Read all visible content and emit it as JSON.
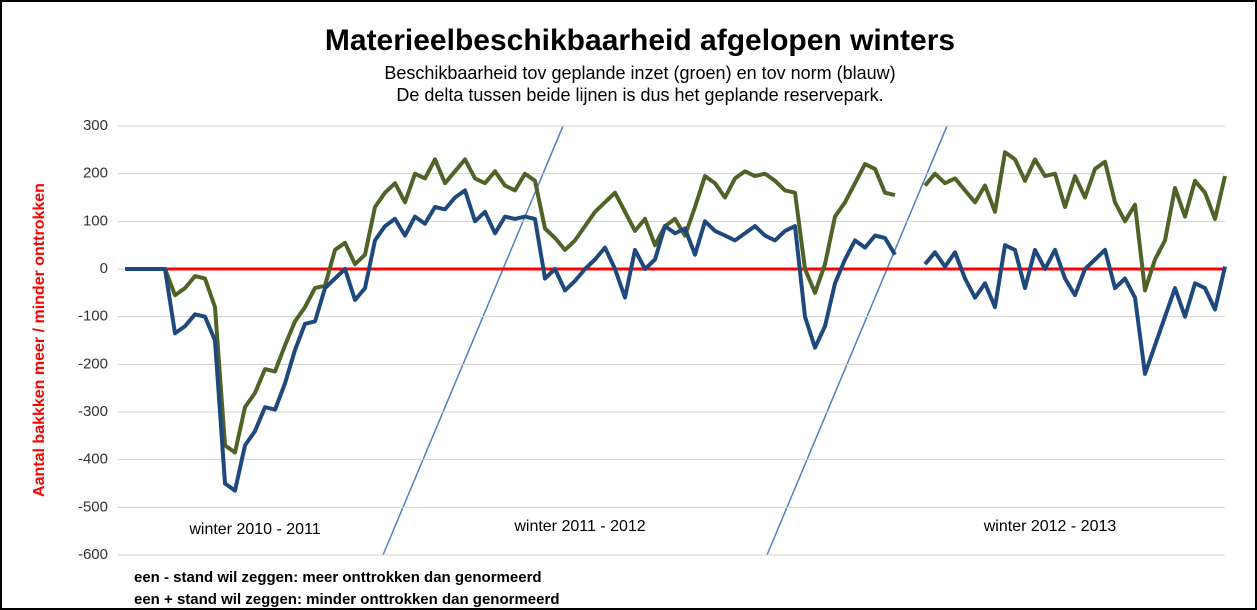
{
  "chart_data": {
    "type": "line",
    "title": "Materieelbeschikbaarheid afgelopen winters",
    "subtitle": [
      "Beschikbaarheid tov geplande inzet (groen) en tov norm (blauw)",
      "De delta tussen beide lijnen is dus het geplande reservepark."
    ],
    "y_label": "Aantal bakkken meer / minder onttrokken",
    "ylim": [
      -600,
      300
    ],
    "yticks": [
      -600,
      -500,
      -400,
      -300,
      -200,
      -100,
      0,
      100,
      200,
      300
    ],
    "grid": true,
    "reference_lines": [
      {
        "value": 0,
        "color": "#ff0000"
      }
    ],
    "series": [
      {
        "color": "#4f6228",
        "values": [
          0,
          0,
          0,
          0,
          0,
          -55,
          -40,
          -15,
          -20,
          -80,
          -370,
          -385,
          -290,
          -260,
          -210,
          -215,
          -160,
          -110,
          -80,
          -40,
          -35,
          40,
          55,
          10,
          30,
          130,
          160,
          180,
          140,
          200,
          190,
          230,
          180,
          205,
          230,
          190,
          180,
          205,
          175,
          165,
          200,
          185,
          85,
          65,
          40,
          60,
          90,
          120,
          140,
          160,
          120,
          80,
          105,
          50,
          90,
          105,
          70,
          130,
          195,
          180,
          150,
          190,
          205,
          195,
          200,
          185,
          165,
          160,
          0,
          -50,
          10,
          110,
          140,
          180,
          220,
          210,
          160,
          155,
          null,
          null,
          175,
          200,
          180,
          190,
          165,
          140,
          175,
          120,
          245,
          230,
          185,
          230,
          195,
          200,
          130,
          195,
          150,
          210,
          225,
          140,
          100,
          135,
          -45,
          20,
          60,
          170,
          110,
          185,
          160,
          105,
          195
        ]
      },
      {
        "color": "#1f497d",
        "values": [
          0,
          0,
          0,
          0,
          0,
          -135,
          -120,
          -95,
          -100,
          -150,
          -450,
          -465,
          -370,
          -340,
          -290,
          -295,
          -240,
          -170,
          -115,
          -110,
          -40,
          -20,
          0,
          -65,
          -40,
          60,
          90,
          105,
          70,
          110,
          95,
          130,
          125,
          150,
          165,
          100,
          120,
          75,
          110,
          105,
          110,
          105,
          -20,
          0,
          -45,
          -25,
          0,
          20,
          45,
          0,
          -60,
          40,
          0,
          20,
          90,
          75,
          85,
          30,
          100,
          80,
          70,
          60,
          75,
          90,
          70,
          60,
          80,
          90,
          -100,
          -165,
          -120,
          -30,
          20,
          60,
          45,
          70,
          65,
          30,
          null,
          null,
          10,
          35,
          5,
          35,
          -20,
          -60,
          -30,
          -80,
          50,
          40,
          -40,
          40,
          0,
          40,
          -20,
          -55,
          0,
          20,
          40,
          -40,
          -20,
          -60,
          -220,
          -160,
          -100,
          -40,
          -100,
          -30,
          -40,
          -85,
          5
        ]
      }
    ],
    "annotations": [
      "winter 2010 - 2011",
      "winter 2011 - 2012",
      "winter 2012 - 2013"
    ],
    "notes": [
      "een - stand wil zeggen: meer onttrokken dan genormeerd",
      "een + stand wil zeggen: minder onttrokken dan genormeerd"
    ]
  }
}
